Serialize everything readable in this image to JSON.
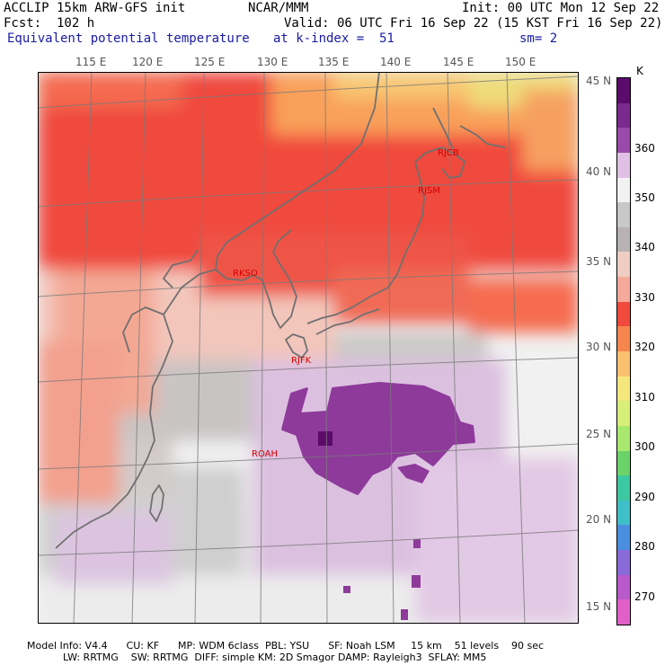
{
  "header": {
    "model": "ACCLIP 15km ARW-GFS init",
    "org": "NCAR/MMM",
    "init": "Init: 00 UTC Mon 12 Sep 22",
    "fcst": "Fcst:  102 h",
    "valid": "Valid: 06 UTC Fri 16 Sep 22 (15 KST Fri 16 Sep 22)",
    "field": "Equivalent potential temperature",
    "level": "at k-index =  51",
    "smooth": "sm= 2"
  },
  "map": {
    "lon_labels": [
      "115 E",
      "120 E",
      "125 E",
      "130 E",
      "135 E",
      "140 E",
      "145 E",
      "150 E"
    ],
    "lat_labels": [
      "45 N",
      "40 N",
      "35 N",
      "30 N",
      "25 N",
      "20 N",
      "15 N"
    ],
    "stations": [
      "RJCB",
      "RJSM",
      "RKSO",
      "RJFK",
      "ROAH"
    ]
  },
  "colorbar": {
    "unit": "K",
    "labels": [
      "360",
      "350",
      "340",
      "330",
      "320",
      "310",
      "300",
      "290",
      "280",
      "270"
    ],
    "colors": [
      "#5c0b6b",
      "#7a2a8c",
      "#9a4aa8",
      "#e0c0e4",
      "#f2f2f2",
      "#c8c8c8",
      "#b8b2b2",
      "#f0cdc2",
      "#f5a99a",
      "#f04a3c",
      "#f7854e",
      "#f9c070",
      "#f6e77c",
      "#d7ee78",
      "#a8e86e",
      "#6ad36a",
      "#3cc8a0",
      "#3fbfc7",
      "#4a8ee0",
      "#8a6ad8",
      "#b85acb",
      "#e060c8"
    ]
  },
  "footer": {
    "line1": "Model Info: V4.4      CU: KF      MP: WDM 6class  PBL: YSU      SF: Noah LSM     15 km    51 levels    90 sec",
    "line2": "LW: RRTMG    SW: RRTMG  DIFF: simple KM: 2D Smagor DAMP: Rayleigh3  SFLAY: MM5"
  }
}
